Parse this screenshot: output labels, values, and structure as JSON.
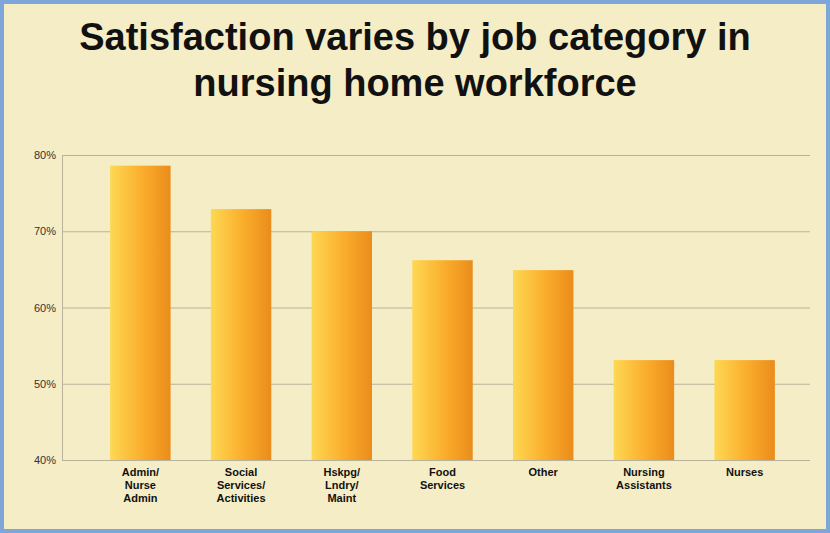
{
  "chart_data": {
    "type": "bar",
    "title": "Satisfaction varies by job category in nursing home workforce",
    "categories": [
      "Admin/ Nurse Admin",
      "Social Services/ Activities",
      "Hskpg/ Lndry/ Maint",
      "Food Services",
      "Other",
      "Nursing Assistants",
      "Nurses"
    ],
    "values": [
      78.6,
      72.9,
      70.0,
      66.2,
      64.9,
      53.1,
      53.1
    ],
    "color": "#f7941d",
    "ylim": [
      40,
      80
    ],
    "yticks": [
      {
        "value": 40,
        "label": "40%"
      },
      {
        "value": 50,
        "label": "50%"
      },
      {
        "value": 60,
        "label": "60%"
      },
      {
        "value": 70,
        "label": "70%"
      },
      {
        "value": 80,
        "label": "80%"
      }
    ],
    "grid": true
  }
}
